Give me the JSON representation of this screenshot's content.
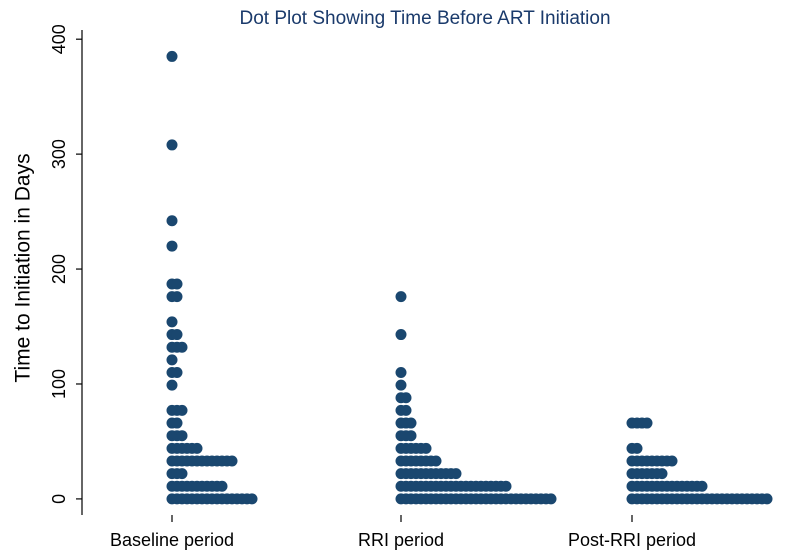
{
  "chart_data": {
    "type": "dot",
    "title": "Dot Plot Showing Time Before ART Initiation",
    "y_label": "Time to Initiation in Days",
    "categories": [
      "Baseline period",
      "RRI period",
      "Post-RRI period"
    ],
    "values": [
      [
        0,
        11,
        22,
        33,
        44,
        55,
        66,
        77,
        99,
        110,
        121,
        132,
        143,
        154,
        176,
        187,
        220,
        242,
        308,
        385
      ],
      [
        0,
        11,
        22,
        33,
        44,
        55,
        66,
        77,
        88,
        99,
        110,
        143,
        176
      ],
      [
        0,
        11,
        22,
        33,
        44,
        66
      ]
    ],
    "counts": [
      [
        17,
        11,
        3,
        13,
        6,
        3,
        2,
        3,
        1,
        2,
        1,
        3,
        2,
        1,
        2,
        2,
        1,
        1,
        1,
        1
      ],
      [
        31,
        22,
        12,
        8,
        6,
        3,
        3,
        2,
        2,
        1,
        1,
        1,
        1
      ],
      [
        28,
        15,
        7,
        9,
        2,
        4
      ]
    ],
    "color": "#1a476f",
    "ylim": [
      -14,
      408
    ],
    "yticks": [
      0,
      100,
      200,
      300,
      400
    ]
  }
}
